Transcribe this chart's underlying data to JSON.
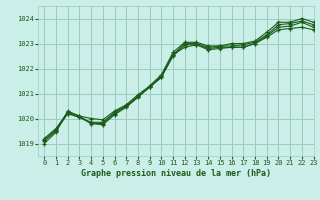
{
  "title": "Graphe pression niveau de la mer (hPa)",
  "background_color": "#cceee8",
  "grid_color": "#99ccbb",
  "line_color": "#1a5c1a",
  "xlim": [
    -0.5,
    23
  ],
  "ylim": [
    1018.5,
    1024.5
  ],
  "yticks": [
    1019,
    1020,
    1021,
    1022,
    1023,
    1024
  ],
  "xticks": [
    0,
    1,
    2,
    3,
    4,
    5,
    6,
    7,
    8,
    9,
    10,
    11,
    12,
    13,
    14,
    15,
    16,
    17,
    18,
    19,
    20,
    21,
    22,
    23
  ],
  "series": [
    [
      1019.2,
      1019.6,
      1020.25,
      1020.1,
      1020.0,
      1019.95,
      1020.3,
      1020.55,
      1020.95,
      1021.3,
      1021.7,
      1022.55,
      1022.85,
      1022.95,
      1022.8,
      1022.85,
      1022.85,
      1022.85,
      1023.0,
      1023.25,
      1023.55,
      1023.6,
      1023.65,
      1023.55
    ],
    [
      1019.15,
      1019.55,
      1020.2,
      1020.05,
      1019.85,
      1019.85,
      1020.25,
      1020.5,
      1020.9,
      1021.25,
      1021.65,
      1022.55,
      1023.0,
      1023.0,
      1022.85,
      1022.9,
      1022.9,
      1022.95,
      1023.05,
      1023.35,
      1023.75,
      1023.8,
      1023.9,
      1023.75
    ],
    [
      1019.1,
      1019.5,
      1020.2,
      1020.05,
      1019.8,
      1019.8,
      1020.2,
      1020.5,
      1020.85,
      1021.3,
      1021.75,
      1022.65,
      1023.05,
      1023.05,
      1022.9,
      1022.9,
      1023.0,
      1023.0,
      1023.1,
      1023.45,
      1023.85,
      1023.85,
      1024.0,
      1023.85
    ],
    [
      1019.0,
      1019.45,
      1020.3,
      1020.1,
      1019.8,
      1019.75,
      1020.15,
      1020.45,
      1020.85,
      1021.25,
      1021.65,
      1022.5,
      1022.95,
      1022.95,
      1022.75,
      1022.8,
      1022.85,
      1022.85,
      1023.0,
      1023.3,
      1023.65,
      1023.7,
      1023.85,
      1023.65
    ]
  ]
}
